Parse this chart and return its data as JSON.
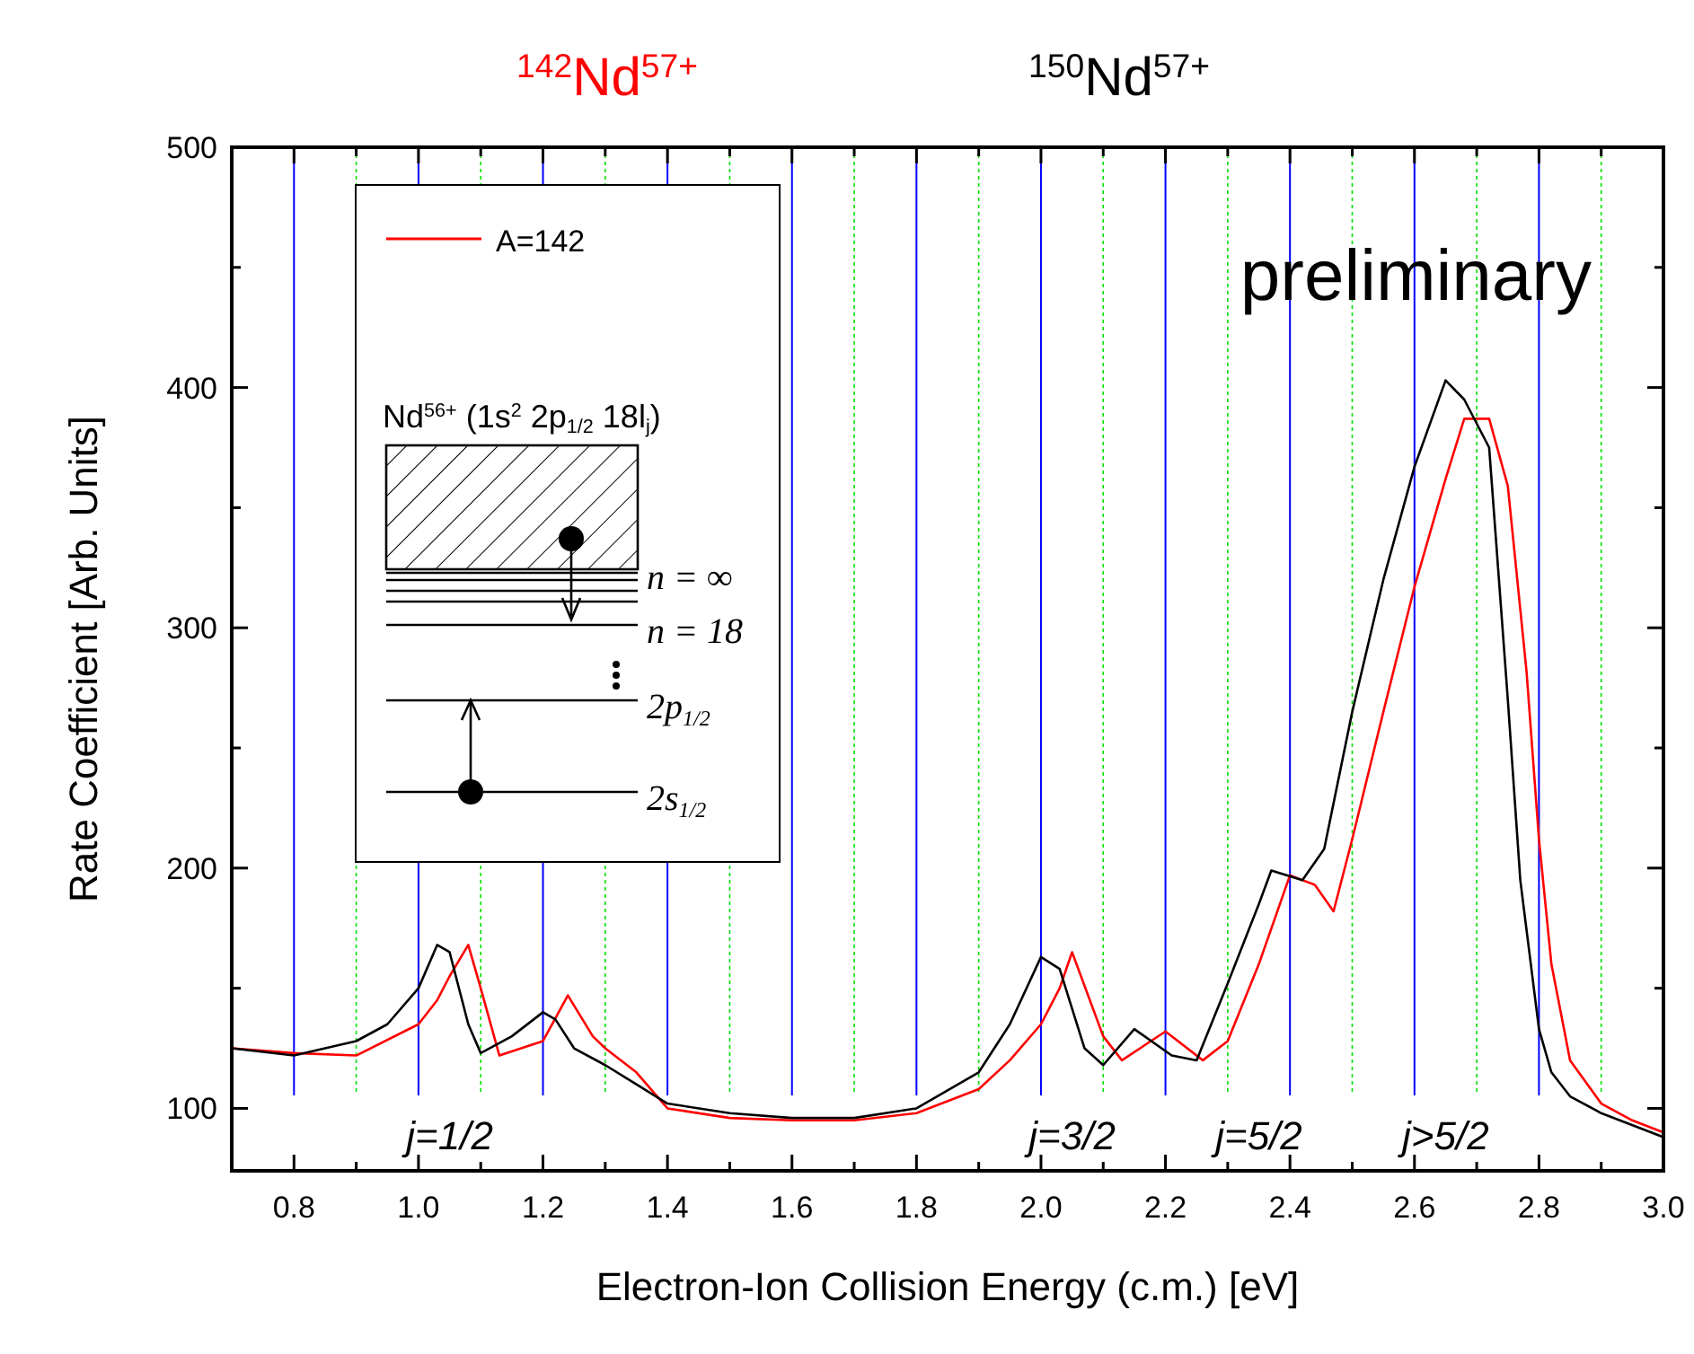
{
  "chart_data": {
    "type": "line",
    "title": "$^{142}$Nd$^{57+}$",
    "subtitle": "$^{150}$Nd$^{57+}$",
    "xlabel": "Electron-Ion Collision Energy (c.m.) [eV]",
    "ylabel": "Rate Coefficient [Arb. Units]",
    "xlim": [
      0.7,
      3.0
    ],
    "xticks": [
      0.8,
      {
        "value": 0.9,
        "label": null
      },
      {
        "value": 1,
        "label": "1.0"
      },
      {
        "value": 1.1,
        "label": null
      },
      1.2,
      {
        "value": 1.3,
        "label": null
      },
      1.4,
      {
        "value": 1.5,
        "label": null
      },
      1.6,
      {
        "value": 1.7,
        "label": null
      },
      1.8,
      {
        "value": 1.9,
        "label": null
      },
      {
        "value": 2,
        "label": "2.0"
      },
      {
        "value": 2.1,
        "label": null
      },
      2.2,
      {
        "value": 2.3,
        "label": null
      },
      2.4,
      {
        "value": 2.5,
        "label": null
      },
      2.6,
      {
        "value": 2.7,
        "label": null
      },
      2.8,
      {
        "value": 2.9,
        "label": null
      },
      {
        "value": 3,
        "label": "3.0"
      }
    ],
    "ylim": [
      74,
      500
    ],
    "yticks": [
      100,
      {
        "value": 150,
        "label": null
      },
      200,
      {
        "value": 250,
        "label": null
      },
      300,
      {
        "value": 350,
        "label": null
      },
      400,
      {
        "value": 450,
        "label": null
      },
      500
    ],
    "grid": "x",
    "legend": "top left",
    "marker": "none",
    "line_style": "solid",
    "series": [
      {
        "name": "A=142",
        "color": "#ff0000",
        "x": [
          0.7,
          0.8,
          0.9,
          1.0,
          1.03,
          1.05,
          1.08,
          1.1,
          1.13,
          1.2,
          1.24,
          1.28,
          1.3,
          1.35,
          1.4,
          1.5,
          1.6,
          1.7,
          1.8,
          1.9,
          1.95,
          2.0,
          2.03,
          2.05,
          2.1,
          2.13,
          2.2,
          2.26,
          2.3,
          2.35,
          2.4,
          2.44,
          2.47,
          2.5,
          2.55,
          2.6,
          2.65,
          2.68,
          2.72,
          2.75,
          2.78,
          2.8,
          2.82,
          2.85,
          2.9,
          2.95,
          3.0
        ],
        "values": [
          125,
          123,
          122,
          135,
          145,
          155,
          168,
          150,
          122,
          128,
          147,
          130,
          125,
          115,
          100,
          96,
          95,
          95,
          98,
          108,
          120,
          135,
          150,
          165,
          130,
          120,
          132,
          120,
          128,
          160,
          197,
          193,
          182,
          212,
          265,
          317,
          362,
          387,
          387,
          359,
          282,
          212,
          160,
          120,
          102,
          95,
          90
        ]
      },
      {
        "color": "#000000",
        "x": [
          0.7,
          0.8,
          0.9,
          0.95,
          1.0,
          1.03,
          1.05,
          1.08,
          1.1,
          1.15,
          1.2,
          1.22,
          1.25,
          1.3,
          1.35,
          1.4,
          1.5,
          1.6,
          1.7,
          1.8,
          1.9,
          1.95,
          2.0,
          2.03,
          2.07,
          2.1,
          2.15,
          2.21,
          2.25,
          2.3,
          2.35,
          2.37,
          2.42,
          2.455,
          2.5,
          2.55,
          2.6,
          2.65,
          2.68,
          2.72,
          2.75,
          2.77,
          2.8,
          2.82,
          2.85,
          2.9,
          3.0
        ],
        "values": [
          125,
          122,
          128,
          135,
          150,
          168,
          165,
          135,
          123,
          130,
          140,
          137,
          125,
          118,
          110,
          102,
          98,
          96,
          96,
          100,
          115,
          135,
          163,
          158,
          125,
          118,
          133,
          122,
          120,
          152,
          185,
          199,
          195,
          208,
          265,
          320,
          367,
          403,
          395,
          375,
          270,
          195,
          133,
          115,
          105,
          98,
          88
        ]
      }
    ],
    "annotations": [
      "preliminary",
      "j=1/2",
      "j=3/2",
      "j=5/2",
      "j>5/2",
      "Nd$^{56+}$ (1s$^{2}$ 2p$_{1/2}$ 18l$_{j}$)",
      "n = ∞",
      "n = 18",
      "2p$_{1/2}$",
      "2s$_{1/2}$"
    ]
  }
}
